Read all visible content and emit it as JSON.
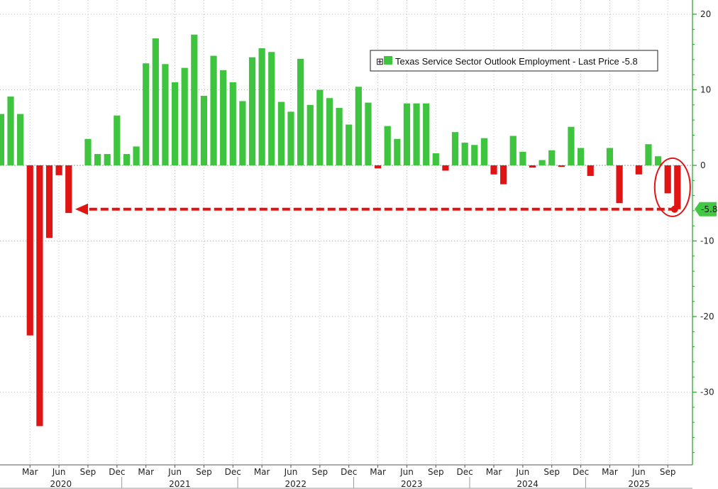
{
  "chart_data": {
    "type": "bar",
    "title": "",
    "xlabel": "",
    "ylabel": "",
    "ylim": [
      -40,
      22
    ],
    "y_axis_position": "right",
    "grid": true,
    "legend": {
      "placement": "top-right",
      "text": "Texas Service Sector Outlook Employment - Last Price -5.8",
      "marker_symbol": "⊞"
    },
    "colors": {
      "positive": "#3ec43e",
      "negative": "#e11414",
      "axis": "#22a022",
      "grid": "#bfbfbf",
      "annotation": "#e11414",
      "callout_bg": "#43c843"
    },
    "y_ticks": [
      20,
      10,
      0,
      -10,
      -20,
      -30
    ],
    "x_month_labels": [
      "Mar",
      "Jun",
      "Sep",
      "Dec",
      "Mar",
      "Jun",
      "Sep",
      "Dec",
      "Mar",
      "Jun",
      "Sep",
      "Dec",
      "Mar",
      "Jun",
      "Sep",
      "Dec",
      "Mar",
      "Jun",
      "Sep",
      "Dec",
      "Mar",
      "Jun",
      "Sep"
    ],
    "x_year_labels": [
      "2020",
      "2021",
      "2022",
      "2023",
      "2024",
      "2025"
    ],
    "series": [
      {
        "name": "Texas Service Sector Outlook Employment",
        "values": [
          6.8,
          9.1,
          6.8,
          -22.5,
          -34.5,
          -9.6,
          -1.3,
          -6.3,
          0.0,
          3.5,
          1.5,
          1.5,
          6.6,
          1.5,
          2.5,
          13.5,
          16.8,
          13.4,
          11.0,
          12.9,
          17.3,
          9.2,
          14.5,
          12.6,
          11.0,
          8.5,
          14.3,
          15.5,
          15.0,
          8.4,
          7.1,
          14.1,
          8.0,
          10.0,
          8.9,
          7.6,
          5.4,
          10.4,
          8.3,
          -0.4,
          5.2,
          3.5,
          8.2,
          8.2,
          8.2,
          1.6,
          -0.7,
          4.4,
          3.0,
          2.7,
          3.6,
          -1.2,
          -2.5,
          3.9,
          1.8,
          -0.3,
          0.7,
          2.0,
          -0.2,
          5.1,
          2.3,
          -1.4,
          0.0,
          2.3,
          -5.0,
          0.0,
          -1.2,
          2.8,
          1.2,
          -3.7,
          -5.8
        ]
      }
    ],
    "annotations": {
      "last_value_callout": "-5.8",
      "dashed_arrow_reference_value": -5.8
    }
  }
}
